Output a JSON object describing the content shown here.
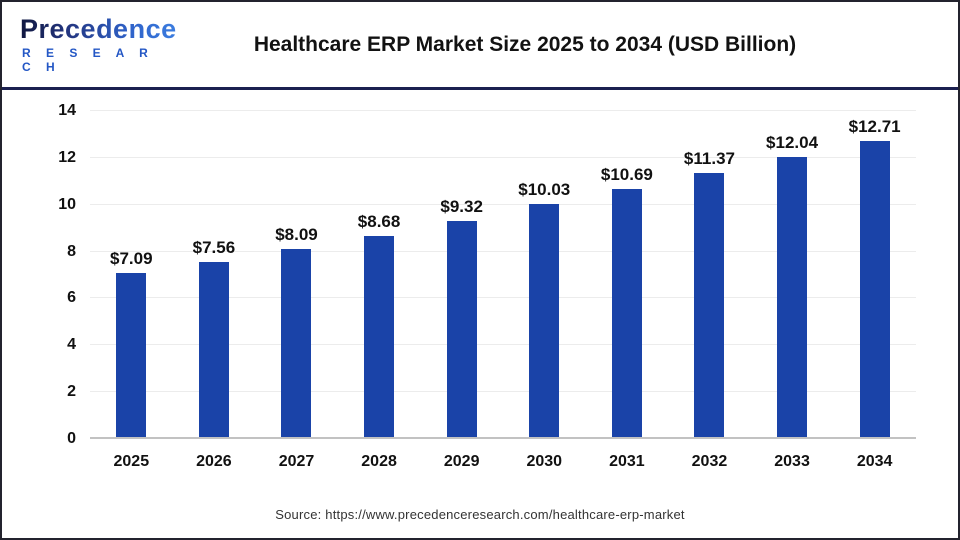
{
  "header": {
    "logo": {
      "brand": "Precedence",
      "sub": "R E S E A R C H"
    },
    "title": "Healthcare ERP Market Size 2025 to 2034 (USD Billion)"
  },
  "chart_data": {
    "type": "bar",
    "title": "Healthcare ERP Market Size 2025 to 2034 (USD Billion)",
    "categories": [
      "2025",
      "2026",
      "2027",
      "2028",
      "2029",
      "2030",
      "2031",
      "2032",
      "2033",
      "2034"
    ],
    "values": [
      7.09,
      7.56,
      8.09,
      8.68,
      9.32,
      10.03,
      10.69,
      11.37,
      12.04,
      12.71
    ],
    "labels": [
      "$7.09",
      "$7.56",
      "$8.09",
      "$8.68",
      "$9.32",
      "$10.03",
      "$10.69",
      "$11.37",
      "$12.04",
      "$12.71"
    ],
    "unit": "USD Billion",
    "xlabel": "",
    "ylabel": "",
    "ylim": [
      0,
      14
    ],
    "ytick_step": 2,
    "grid": true,
    "legend": false,
    "bar_color": "#1a43a8"
  },
  "footer": {
    "source": "Source: https://www.precedenceresearch.com/healthcare-erp-market"
  },
  "colors": {
    "bar": "#1a43a8",
    "header_divider": "#1b2050",
    "gridline": "#ececec",
    "baseline": "#c2c2c2",
    "logo_blue": "#2457c5",
    "text": "#111111"
  }
}
